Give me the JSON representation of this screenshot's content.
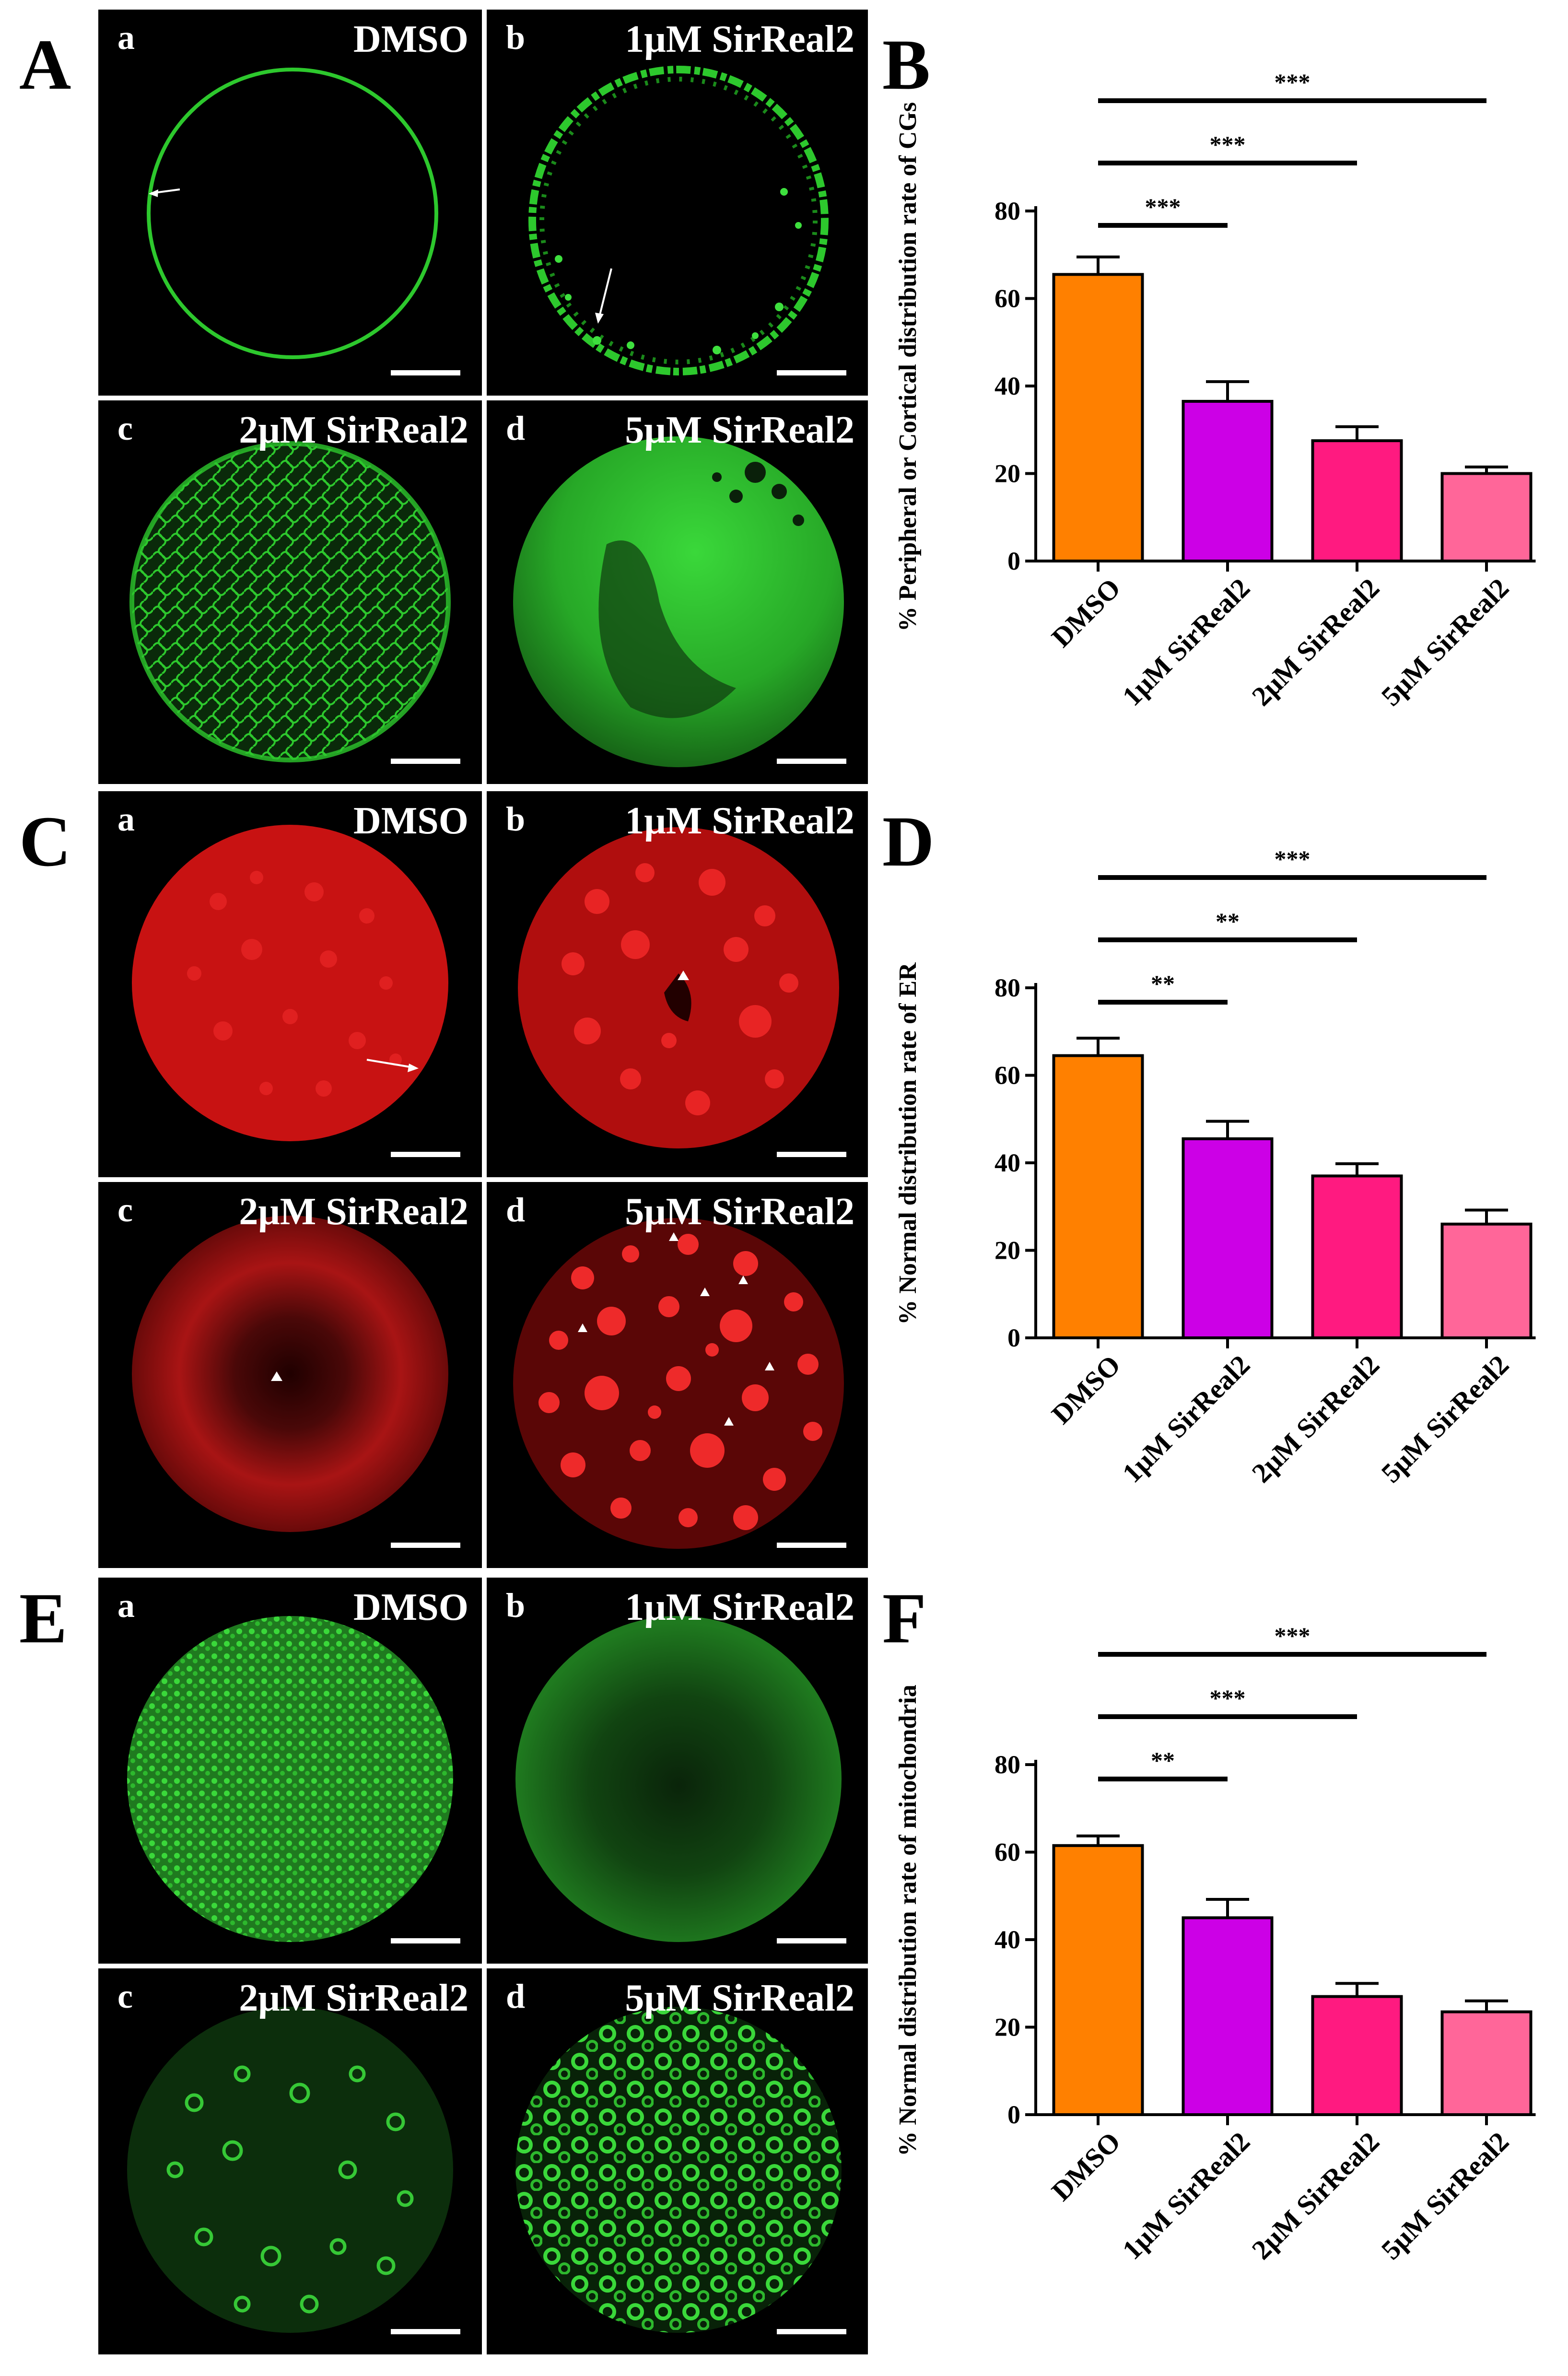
{
  "panels": {
    "A": {
      "letter": "A",
      "images": [
        {
          "sub": "a",
          "label": "DMSO"
        },
        {
          "sub": "b",
          "label": "1μM SirReal2"
        },
        {
          "sub": "c",
          "label": "2μM SirReal2"
        },
        {
          "sub": "d",
          "label": "5μM SirReal2"
        }
      ]
    },
    "C": {
      "letter": "C",
      "images": [
        {
          "sub": "a",
          "label": "DMSO"
        },
        {
          "sub": "b",
          "label": "1μM SirReal2"
        },
        {
          "sub": "c",
          "label": "2μM SirReal2"
        },
        {
          "sub": "d",
          "label": "5μM SirReal2"
        }
      ]
    },
    "E": {
      "letter": "E",
      "images": [
        {
          "sub": "a",
          "label": "DMSO"
        },
        {
          "sub": "b",
          "label": "1μM SirReal2"
        },
        {
          "sub": "c",
          "label": "2μM SirReal2"
        },
        {
          "sub": "d",
          "label": "5μM SirReal2"
        }
      ]
    }
  },
  "colors": {
    "DMSO": "#ff8000",
    "SirReal2_1uM": "#cc00e6",
    "SirReal2_2uM": "#ff1a80",
    "SirReal2_5uM": "#ff6699",
    "cg_green": "#2dc82d",
    "er_red": "#d81010",
    "mito_green": "#33b833"
  },
  "chart_data": [
    {
      "panel": "B",
      "type": "bar",
      "ylabel": "% Peripheral or Cortical distribution rate of CGs",
      "categories": [
        "DMSO",
        "1μM SirReal2",
        "2μM SirReal2",
        "5μM SirReal2"
      ],
      "values": [
        65.5,
        36.5,
        27.5,
        20
      ],
      "errors": [
        4,
        4.5,
        3.2,
        1.5
      ],
      "ylim": [
        0,
        80
      ],
      "yticks": [
        "0",
        "20",
        "40",
        "60",
        "80"
      ],
      "significance": [
        {
          "from": 0,
          "to": 1,
          "label": "***"
        },
        {
          "from": 0,
          "to": 2,
          "label": "***"
        },
        {
          "from": 0,
          "to": 3,
          "label": "***"
        }
      ]
    },
    {
      "panel": "D",
      "type": "bar",
      "ylabel": "% Normal distribution rate of ER",
      "categories": [
        "DMSO",
        "1μM SirReal2",
        "2μM SirReal2",
        "5μM SirReal2"
      ],
      "values": [
        64.5,
        45.5,
        37,
        26
      ],
      "errors": [
        4,
        4,
        2.8,
        3.2
      ],
      "ylim": [
        0,
        80
      ],
      "yticks": [
        "0",
        "20",
        "40",
        "60",
        "80"
      ],
      "significance": [
        {
          "from": 0,
          "to": 1,
          "label": "**"
        },
        {
          "from": 0,
          "to": 2,
          "label": "**"
        },
        {
          "from": 0,
          "to": 3,
          "label": "***"
        }
      ]
    },
    {
      "panel": "F",
      "type": "bar",
      "ylabel": "% Normal distribution rate of mitochondria",
      "categories": [
        "DMSO",
        "1μM SirReal2",
        "2μM SirReal2",
        "5μM SirReal2"
      ],
      "values": [
        61.5,
        45,
        27,
        23.5
      ],
      "errors": [
        2.2,
        4.2,
        3,
        2.5
      ],
      "ylim": [
        0,
        80
      ],
      "yticks": [
        "0",
        "20",
        "40",
        "60",
        "80"
      ],
      "significance": [
        {
          "from": 0,
          "to": 1,
          "label": "**"
        },
        {
          "from": 0,
          "to": 2,
          "label": "***"
        },
        {
          "from": 0,
          "to": 3,
          "label": "***"
        }
      ]
    }
  ],
  "chart_letters": {
    "B": "B",
    "D": "D",
    "F": "F"
  }
}
